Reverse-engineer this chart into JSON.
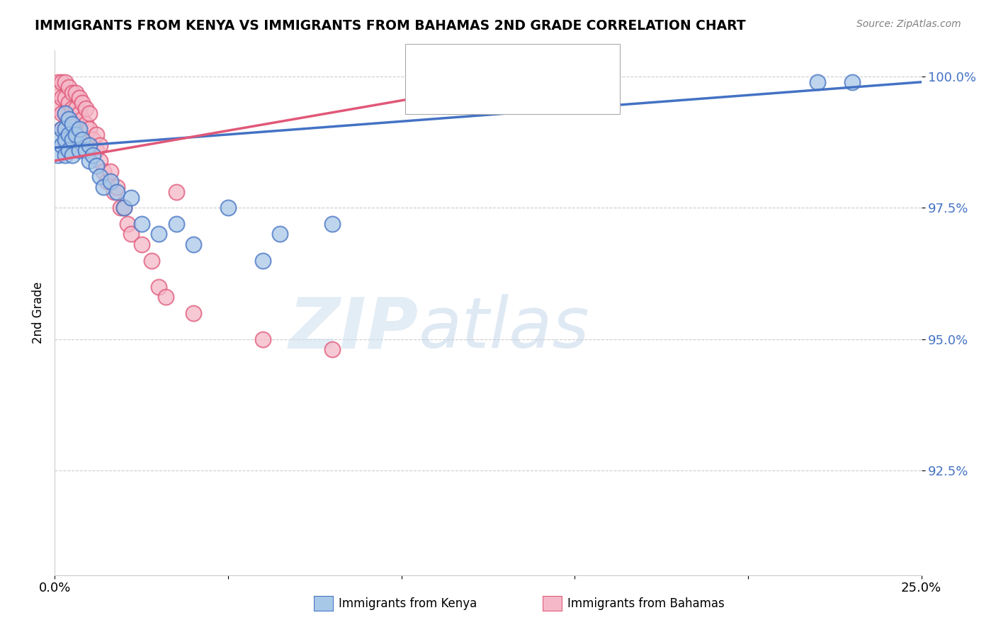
{
  "title": "IMMIGRANTS FROM KENYA VS IMMIGRANTS FROM BAHAMAS 2ND GRADE CORRELATION CHART",
  "source": "Source: ZipAtlas.com",
  "ylabel": "2nd Grade",
  "xlim": [
    0.0,
    0.25
  ],
  "ylim": [
    0.905,
    1.005
  ],
  "xticks": [
    0.0,
    0.05,
    0.1,
    0.15,
    0.2,
    0.25
  ],
  "xtick_labels": [
    "0.0%",
    "",
    "",
    "",
    "",
    "25.0%"
  ],
  "ytick_labels": [
    "92.5%",
    "95.0%",
    "97.5%",
    "100.0%"
  ],
  "yticks": [
    0.925,
    0.95,
    0.975,
    1.0
  ],
  "kenya_color": "#a8c8e8",
  "bahamas_color": "#f4b8c8",
  "kenya_line_color": "#4472c4",
  "bahamas_line_color": "#e05878",
  "watermark_zip": "ZIP",
  "watermark_atlas": "atlas",
  "kenya_x": [
    0.001,
    0.001,
    0.002,
    0.002,
    0.003,
    0.003,
    0.003,
    0.003,
    0.004,
    0.004,
    0.004,
    0.005,
    0.005,
    0.005,
    0.006,
    0.007,
    0.007,
    0.008,
    0.009,
    0.01,
    0.01,
    0.011,
    0.012,
    0.013,
    0.014,
    0.016,
    0.018,
    0.02,
    0.022,
    0.025,
    0.03,
    0.035,
    0.04,
    0.05,
    0.06,
    0.065,
    0.08,
    0.22,
    0.23
  ],
  "kenya_y": [
    0.988,
    0.985,
    0.99,
    0.987,
    0.993,
    0.99,
    0.988,
    0.985,
    0.992,
    0.989,
    0.986,
    0.991,
    0.988,
    0.985,
    0.989,
    0.99,
    0.986,
    0.988,
    0.986,
    0.987,
    0.984,
    0.985,
    0.983,
    0.981,
    0.979,
    0.98,
    0.978,
    0.975,
    0.977,
    0.972,
    0.97,
    0.972,
    0.968,
    0.975,
    0.965,
    0.97,
    0.972,
    0.999,
    0.999
  ],
  "bahamas_x": [
    0.001,
    0.001,
    0.001,
    0.002,
    0.002,
    0.002,
    0.002,
    0.003,
    0.003,
    0.003,
    0.003,
    0.003,
    0.004,
    0.004,
    0.004,
    0.004,
    0.005,
    0.005,
    0.005,
    0.006,
    0.006,
    0.006,
    0.007,
    0.007,
    0.007,
    0.008,
    0.008,
    0.009,
    0.009,
    0.01,
    0.01,
    0.01,
    0.011,
    0.012,
    0.012,
    0.013,
    0.013,
    0.014,
    0.015,
    0.016,
    0.017,
    0.018,
    0.019,
    0.02,
    0.021,
    0.022,
    0.025,
    0.028,
    0.03,
    0.032,
    0.035,
    0.04,
    0.06,
    0.08
  ],
  "bahamas_y": [
    0.999,
    0.997,
    0.994,
    0.999,
    0.996,
    0.993,
    0.99,
    0.999,
    0.996,
    0.993,
    0.99,
    0.987,
    0.998,
    0.995,
    0.992,
    0.989,
    0.997,
    0.994,
    0.991,
    0.997,
    0.994,
    0.991,
    0.996,
    0.993,
    0.99,
    0.995,
    0.992,
    0.994,
    0.991,
    0.993,
    0.99,
    0.987,
    0.988,
    0.986,
    0.989,
    0.984,
    0.987,
    0.982,
    0.98,
    0.982,
    0.978,
    0.979,
    0.975,
    0.975,
    0.972,
    0.97,
    0.968,
    0.965,
    0.96,
    0.958,
    0.978,
    0.955,
    0.95,
    0.948
  ],
  "kenya_trendline_x": [
    0.0,
    0.25
  ],
  "kenya_trendline_y": [
    0.9865,
    0.999
  ],
  "bahamas_trendline_x": [
    0.0,
    0.135
  ],
  "bahamas_trendline_y": [
    0.984,
    0.9995
  ]
}
